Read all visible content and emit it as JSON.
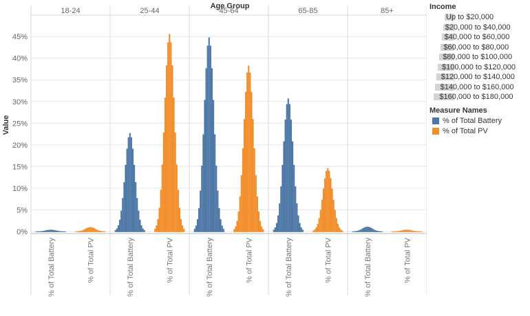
{
  "chart_data": {
    "type": "bar",
    "title": "",
    "column_header_title": "Age Group",
    "ylabel": "Value",
    "ylim": [
      -0.005,
      0.49
    ],
    "yticks": [
      {
        "value": 0.0,
        "label": "0%"
      },
      {
        "value": 0.05,
        "label": "5%"
      },
      {
        "value": 0.1,
        "label": "10%"
      },
      {
        "value": 0.15,
        "label": "15%"
      },
      {
        "value": 0.2,
        "label": "20%"
      },
      {
        "value": 0.25,
        "label": "25%"
      },
      {
        "value": 0.3,
        "label": "30%"
      },
      {
        "value": 0.35,
        "label": "35%"
      },
      {
        "value": 0.4,
        "label": "40%"
      },
      {
        "value": 0.45,
        "label": "45%"
      }
    ],
    "age_groups": [
      "18-24",
      "25-44",
      "45-64",
      "65-85",
      "85+"
    ],
    "measures": [
      "% of Total Battery",
      "% of Total PV"
    ],
    "income_levels": [
      "Up to $20,000",
      "$20,000 to $40,000",
      "$40,000 to $60,000",
      "$60,000 to $80,000",
      "$80,000 to $100,000",
      "$100,000 to $120,000",
      "$120,000 to $140,000",
      "$140,000 to $160,000",
      "$160,000 to $180,000"
    ],
    "legend_income_values": [
      0.035,
      0.05,
      0.065,
      0.08,
      0.095,
      0.11,
      0.125,
      0.14,
      0.155
    ],
    "series": [
      {
        "age_group": "18-24",
        "measure": "% of Total Battery",
        "peak": 0.004
      },
      {
        "age_group": "18-24",
        "measure": "% of Total PV",
        "peak": 0.01
      },
      {
        "age_group": "25-44",
        "measure": "% of Total Battery",
        "peak": 0.227
      },
      {
        "age_group": "25-44",
        "measure": "% of Total PV",
        "peak": 0.456
      },
      {
        "age_group": "45-64",
        "measure": "% of Total Battery",
        "peak": 0.448
      },
      {
        "age_group": "45-64",
        "measure": "% of Total PV",
        "peak": 0.383
      },
      {
        "age_group": "65-85",
        "measure": "% of Total Battery",
        "peak": 0.307
      },
      {
        "age_group": "65-85",
        "measure": "% of Total PV",
        "peak": 0.146
      },
      {
        "age_group": "85+",
        "measure": "% of Total Battery",
        "peak": 0.011
      },
      {
        "age_group": "85+",
        "measure": "% of Total PV",
        "peak": 0.004
      }
    ],
    "grid": true,
    "legend_position": "right"
  },
  "legend": {
    "income_title": "Income",
    "measure_title": "Measure Names",
    "measure_items": [
      {
        "label": "% of Total Battery",
        "color": "#4e79a7"
      },
      {
        "label": "% of Total PV",
        "color": "#f28e2b"
      }
    ]
  },
  "colors": {
    "battery": "#4e79a7",
    "pv": "#f28e2b",
    "grid": "#e6e6e6",
    "divider": "#d8d8d8",
    "legend_bar": "#d4d4d4"
  }
}
